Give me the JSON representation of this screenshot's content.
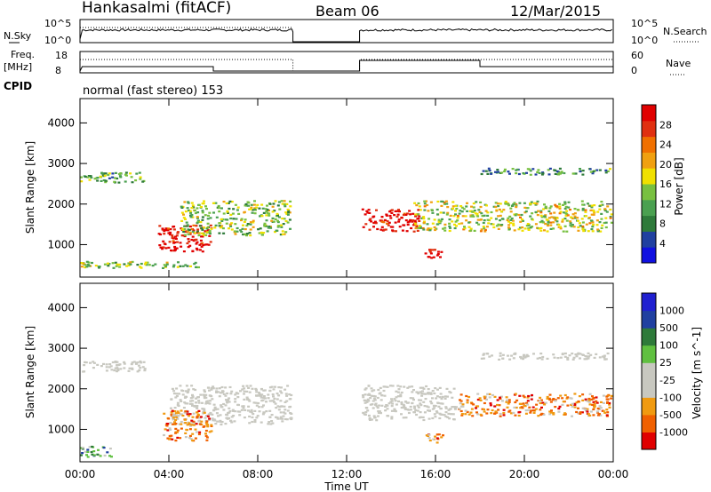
{
  "header": {
    "station": "Hankasalmi (fitACF)",
    "beam": "Beam 06",
    "date": "12/Mar/2015"
  },
  "left_labels": {
    "nsky": "N.Sky",
    "freq": "Freq.",
    "freq_unit": "[MHz]",
    "cpid": "CPID",
    "slant_range": "Slant Range [km]"
  },
  "right_labels": {
    "nsearch": "N.Search",
    "nave": "Nave"
  },
  "noise_axis": {
    "top": "10^5",
    "bottom": "10^0"
  },
  "freq_axis": {
    "top": "18",
    "bottom": "8"
  },
  "nave_axis": {
    "top": "60",
    "bottom": "0"
  },
  "cpid_text": "normal (fast stereo) 153",
  "colors": {
    "power_scale": [
      "#1010e0",
      "#2040a0",
      "#2e7a3a",
      "#4aa050",
      "#78c040",
      "#f0e000",
      "#f0a010",
      "#f07000",
      "#e03010",
      "#e00000"
    ],
    "velocity_scale": [
      "#e00000",
      "#f06000",
      "#f09a10",
      "#c8c8c0",
      "#c8c8c0",
      "#60c040",
      "#2e7a3a",
      "#2040a0",
      "#2020d0"
    ]
  },
  "chart_data": [
    {
      "type": "heatmap",
      "name": "power",
      "xlabel": "Time UT",
      "ylabel": "Slant Range [km]",
      "colorbar_label": "Power [dB]",
      "x_ticks": [
        "00:00",
        "04:00",
        "08:00",
        "12:00",
        "16:00",
        "20:00",
        "00:00"
      ],
      "y_ticks": [
        1000,
        2000,
        3000,
        4000
      ],
      "ylim": [
        200,
        4600
      ],
      "colorbar_ticks": [
        4,
        8,
        12,
        16,
        20,
        24,
        28
      ],
      "data_gap": [
        "09:35",
        "12:35"
      ],
      "echo_regions": [
        {
          "time": [
            "00:00",
            "03:00"
          ],
          "range_km": [
            2500,
            2800
          ],
          "power_db": 10
        },
        {
          "time": [
            "03:30",
            "06:00"
          ],
          "range_km": [
            800,
            1500
          ],
          "power_db": 28
        },
        {
          "time": [
            "04:30",
            "09:35"
          ],
          "range_km": [
            1200,
            2100
          ],
          "power_db": 12
        },
        {
          "time": [
            "00:00",
            "05:30"
          ],
          "range_km": [
            400,
            600
          ],
          "power_db": 12
        },
        {
          "time": [
            "12:40",
            "15:20"
          ],
          "range_km": [
            1300,
            1900
          ],
          "power_db": 28
        },
        {
          "time": [
            "15:00",
            "24:00"
          ],
          "range_km": [
            1300,
            2100
          ],
          "power_db": 14
        },
        {
          "time": [
            "15:30",
            "16:30"
          ],
          "range_km": [
            650,
            900
          ],
          "power_db": 28
        },
        {
          "time": [
            "18:00",
            "24:00"
          ],
          "range_km": [
            2700,
            2900
          ],
          "power_db": 8
        }
      ]
    },
    {
      "type": "heatmap",
      "name": "velocity",
      "xlabel": "Time UT",
      "ylabel": "Slant Range [km]",
      "colorbar_label": "Velocity [m s^-1]",
      "x_ticks": [
        "00:00",
        "04:00",
        "08:00",
        "12:00",
        "16:00",
        "20:00",
        "00:00"
      ],
      "y_ticks": [
        1000,
        2000,
        3000,
        4000
      ],
      "ylim": [
        200,
        4600
      ],
      "colorbar_ticks": [
        -1000,
        -500,
        -100,
        -25,
        25,
        100,
        500,
        1000
      ],
      "data_gap": [
        "09:35",
        "12:35"
      ],
      "echo_regions": [
        {
          "time": [
            "00:00",
            "03:00"
          ],
          "range_km": [
            2400,
            2700
          ],
          "velocity": 0
        },
        {
          "time": [
            "04:00",
            "09:35"
          ],
          "range_km": [
            1100,
            2100
          ],
          "velocity": 0
        },
        {
          "time": [
            "03:40",
            "06:00"
          ],
          "range_km": [
            700,
            1500
          ],
          "velocity": -200
        },
        {
          "time": [
            "00:00",
            "01:30"
          ],
          "range_km": [
            300,
            600
          ],
          "velocity": 100
        },
        {
          "time": [
            "12:40",
            "17:00"
          ],
          "range_km": [
            1200,
            2100
          ],
          "velocity": 0
        },
        {
          "time": [
            "17:00",
            "24:00"
          ],
          "range_km": [
            1300,
            1900
          ],
          "velocity": -300
        },
        {
          "time": [
            "15:30",
            "16:30"
          ],
          "range_km": [
            650,
            900
          ],
          "velocity": -300
        },
        {
          "time": [
            "18:00",
            "24:00"
          ],
          "range_km": [
            2700,
            2900
          ],
          "velocity": 0
        }
      ]
    }
  ]
}
